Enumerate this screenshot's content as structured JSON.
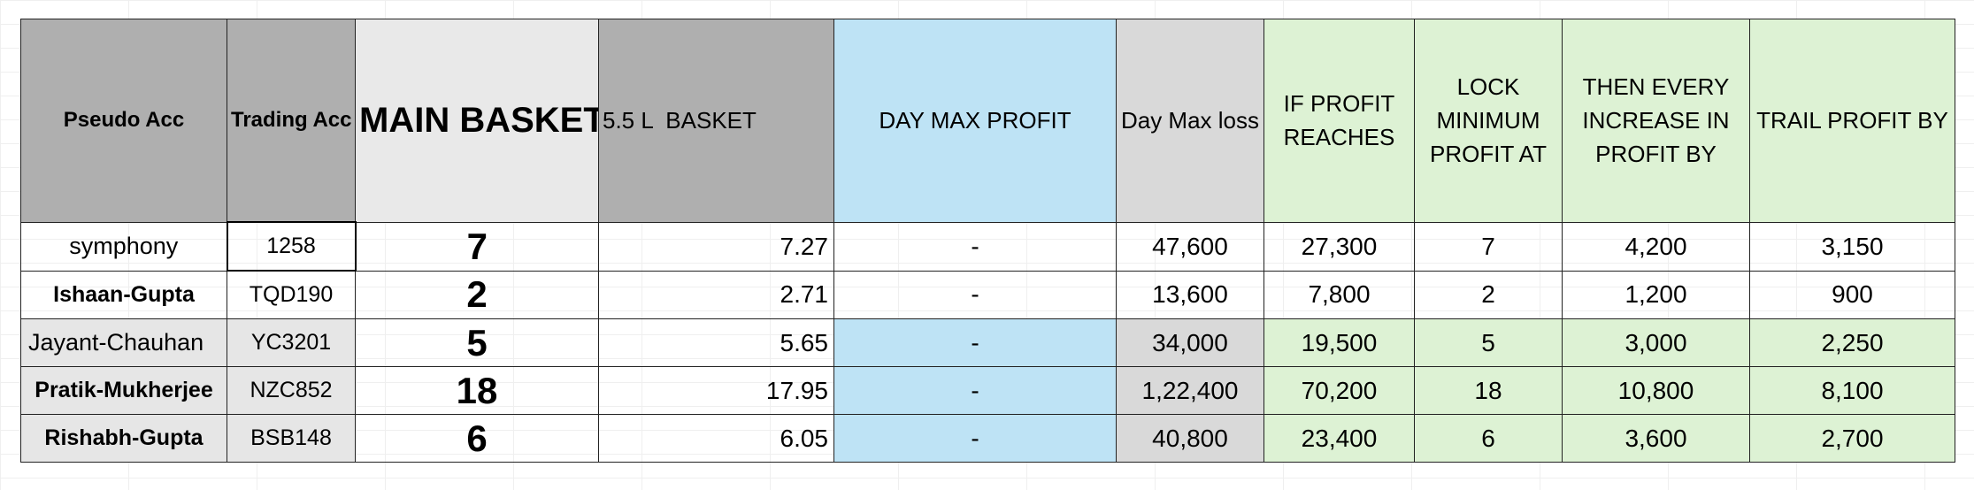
{
  "header": {
    "pseudo_acc": "Pseudo Acc",
    "trading_acc": "Trading Acc",
    "main_basket": "MAIN BASKET",
    "basket_55": "5.5 L  BASKET",
    "day_max_profit": "DAY MAX PROFIT",
    "day_max_loss": "Day Max loss",
    "if_profit_reaches": "IF PROFIT REACHES",
    "lock_minimum_profit": "LOCK MINIMUM PROFIT AT",
    "then_every_increase": "THEN EVERY INCREASE IN PROFIT BY",
    "trail_profit_by": "TRAIL PROFIT BY"
  },
  "rows": [
    {
      "pseudo": "symphony",
      "trading": "1258",
      "main": "7",
      "basket": "7.27",
      "dmp": "-",
      "dml": "47,600",
      "ifprofit": "27,300",
      "lock": "7",
      "increase": "4,200",
      "trail": "3,150"
    },
    {
      "pseudo": "Ishaan-Gupta",
      "trading": "TQD190",
      "main": "2",
      "basket": "2.71",
      "dmp": "-",
      "dml": "13,600",
      "ifprofit": "7,800",
      "lock": "2",
      "increase": "1,200",
      "trail": "900"
    },
    {
      "pseudo": "Jayant-Chauhan",
      "trading": "YC3201",
      "main": "5",
      "basket": "5.65",
      "dmp": "-",
      "dml": "34,000",
      "ifprofit": "19,500",
      "lock": "5",
      "increase": "3,000",
      "trail": "2,250"
    },
    {
      "pseudo": "Pratik-Mukherjee",
      "trading": "NZC852",
      "main": "18",
      "basket": "17.95",
      "dmp": "-",
      "dml": "1,22,400",
      "ifprofit": "70,200",
      "lock": "18",
      "increase": "10,800",
      "trail": "8,100"
    },
    {
      "pseudo": "Rishabh-Gupta",
      "trading": "BSB148",
      "main": "6",
      "basket": "6.05",
      "dmp": "-",
      "dml": "40,800",
      "ifprofit": "23,400",
      "lock": "6",
      "increase": "3,600",
      "trail": "2,700"
    }
  ]
}
